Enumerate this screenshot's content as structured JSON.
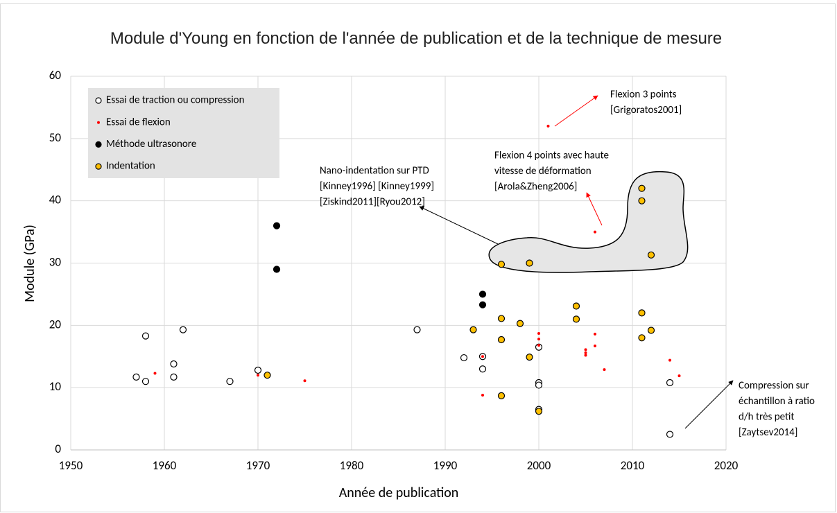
{
  "chart_data": {
    "type": "scatter",
    "title": "Module d'Young en fonction de l'année de publication et de la technique de mesure",
    "x_label": "Année de publication",
    "y_label": "Module (GPa)",
    "xlim": [
      1950,
      2020
    ],
    "xticks": [
      1950,
      1960,
      1970,
      1980,
      1990,
      2000,
      2010,
      2020
    ],
    "ylim": [
      0,
      60
    ],
    "yticks": [
      0,
      10,
      20,
      30,
      40,
      50,
      60
    ],
    "grid": true,
    "legend": "upper left",
    "series": [
      {
        "name": "Essai de traction ou compression",
        "color": "#ffffff",
        "x": [
          1957,
          1958,
          1958,
          1961,
          1961,
          1962,
          1967,
          1970,
          1987,
          1992,
          1994,
          1994,
          2000,
          2000,
          2000,
          2000,
          2014,
          2014
        ],
        "values": [
          11.7,
          18.3,
          11.0,
          13.8,
          11.7,
          19.3,
          11.0,
          12.8,
          19.3,
          14.8,
          13.0,
          15.0,
          16.5,
          10.8,
          10.4,
          6.5,
          10.8,
          2.5
        ]
      },
      {
        "name": "Essai de flexion",
        "color": "#ff0000",
        "x": [
          1959,
          1970,
          1975,
          1994,
          1994,
          2000,
          2000,
          2000,
          2001,
          2005,
          2005,
          2005,
          2006,
          2006,
          2006,
          2007,
          2014,
          2015
        ],
        "values": [
          12.3,
          12.0,
          11.1,
          15.0,
          8.8,
          18.7,
          17.8,
          16.8,
          52.0,
          16.1,
          15.6,
          15.2,
          35.0,
          18.6,
          16.7,
          12.9,
          14.4,
          11.9
        ]
      },
      {
        "name": "Méthode ultrasonore",
        "color": "#000000",
        "x": [
          1972,
          1972,
          1994,
          1994
        ],
        "values": [
          36.0,
          29.0,
          25.0,
          23.3
        ]
      },
      {
        "name": "Indentation",
        "color": "#ffc000",
        "x": [
          1971,
          1993,
          1996,
          1996,
          1996,
          1996,
          1998,
          1999,
          1999,
          2000,
          2004,
          2004,
          2011,
          2011,
          2011,
          2011,
          2012,
          2012
        ],
        "values": [
          12.0,
          19.3,
          29.8,
          21.1,
          17.7,
          8.7,
          20.3,
          30.0,
          14.9,
          6.2,
          23.1,
          21.0,
          42.0,
          40.0,
          22.0,
          18.0,
          31.3,
          19.2
        ]
      }
    ],
    "annotations": [
      {
        "lines": [
          "Flexion 3 points",
          "[Grigoratos2001]"
        ]
      },
      {
        "lines": [
          "Flexion 4 points avec haute",
          "vitesse de déformation",
          "[Arola&Zheng2006]"
        ]
      },
      {
        "lines": [
          "Nano-indentation sur PTD",
          "[Kinney1996] [Kinney1999]",
          "[Ziskind2011][Ryou2012]"
        ]
      },
      {
        "lines": [
          "Compression sur",
          "échantillon à ratio",
          "d/h très petit",
          "[Zaytsev2014]"
        ]
      }
    ]
  }
}
